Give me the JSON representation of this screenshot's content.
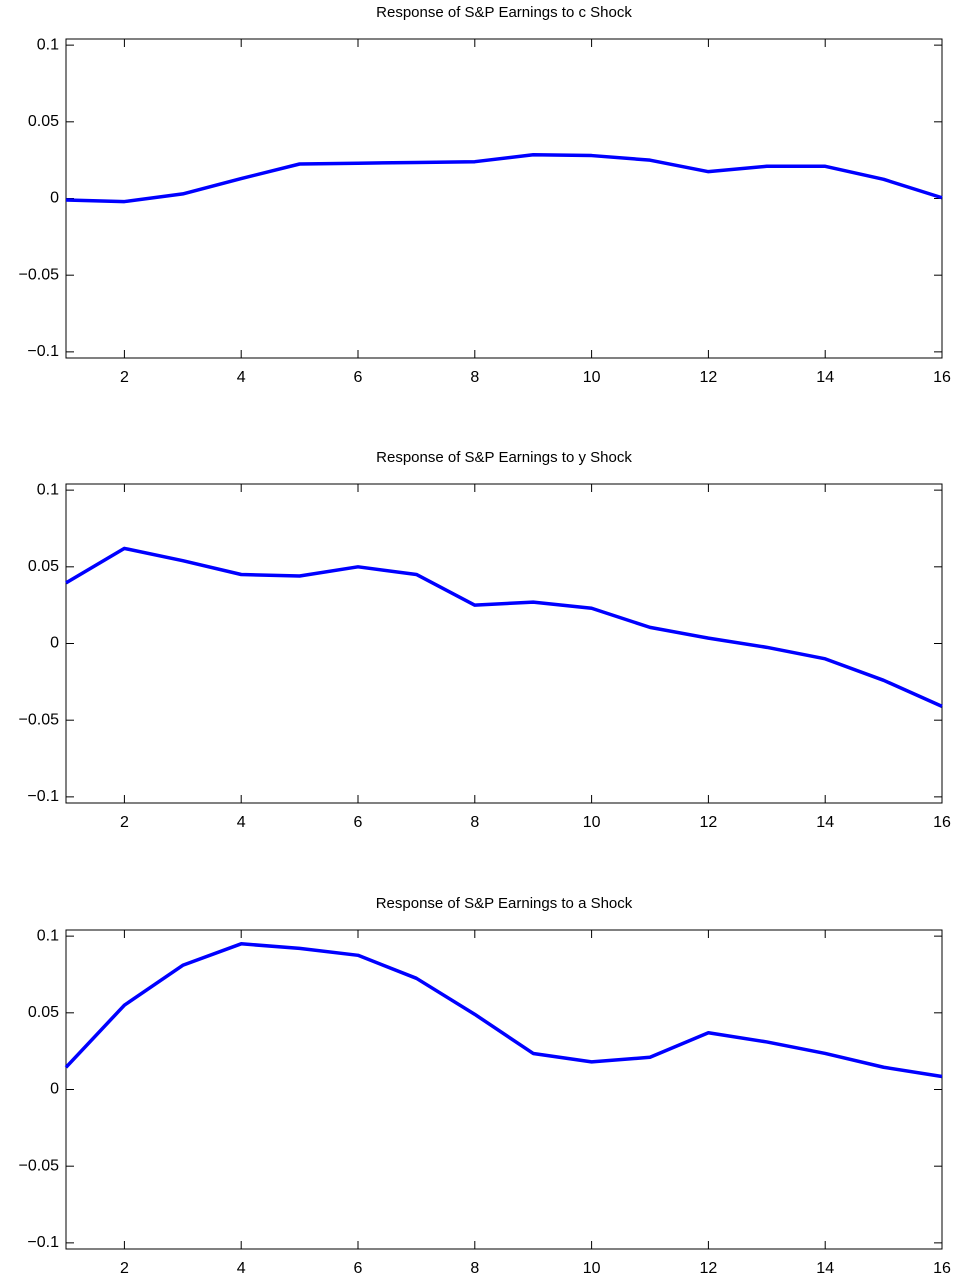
{
  "chart_data": [
    {
      "type": "line",
      "title": "Response of S&P Earnings to c Shock",
      "x": [
        1,
        2,
        3,
        4,
        5,
        6,
        7,
        8,
        9,
        10,
        11,
        12,
        13,
        14,
        15,
        16
      ],
      "series": [
        {
          "color": "#0000ff",
          "values": [
            -0.001,
            -0.002,
            0.003,
            0.013,
            0.0225,
            0.023,
            0.0235,
            0.024,
            0.0285,
            0.028,
            0.025,
            0.0175,
            0.021,
            0.021,
            0.0125,
            0.0005
          ]
        }
      ],
      "xlim": [
        1,
        16
      ],
      "xticks": [
        2,
        4,
        6,
        8,
        10,
        12,
        14,
        16
      ],
      "ylim": [
        -0.104,
        0.104
      ],
      "yticks": [
        {
          "value": -0.1,
          "label": "−0.1"
        },
        {
          "value": -0.05,
          "label": "−0.05"
        },
        0,
        0.05,
        0.1
      ]
    },
    {
      "type": "line",
      "title": "Response of S&P Earnings to y Shock",
      "x": [
        1,
        2,
        3,
        4,
        5,
        6,
        7,
        8,
        9,
        10,
        11,
        12,
        13,
        14,
        15,
        16
      ],
      "series": [
        {
          "color": "#0000ff",
          "values": [
            0.0395,
            0.062,
            0.054,
            0.045,
            0.044,
            0.05,
            0.045,
            0.025,
            0.027,
            0.023,
            0.0105,
            0.0035,
            -0.0025,
            -0.01,
            -0.024,
            -0.041
          ]
        }
      ],
      "xlim": [
        1,
        16
      ],
      "xticks": [
        2,
        4,
        6,
        8,
        10,
        12,
        14,
        16
      ],
      "ylim": [
        -0.104,
        0.104
      ],
      "yticks": [
        {
          "value": -0.1,
          "label": "−0.1"
        },
        {
          "value": -0.05,
          "label": "−0.05"
        },
        0,
        0.05,
        0.1
      ]
    },
    {
      "type": "line",
      "title": "Response of S&P Earnings to a Shock",
      "x": [
        1,
        2,
        3,
        4,
        5,
        6,
        7,
        8,
        9,
        10,
        11,
        12,
        13,
        14,
        15,
        16
      ],
      "series": [
        {
          "color": "#0000ff",
          "values": [
            0.0145,
            0.055,
            0.081,
            0.095,
            0.092,
            0.0875,
            0.0725,
            0.049,
            0.0235,
            0.018,
            0.021,
            0.037,
            0.031,
            0.0235,
            0.0145,
            0.0085
          ]
        }
      ],
      "xlim": [
        1,
        16
      ],
      "xticks": [
        2,
        4,
        6,
        8,
        10,
        12,
        14,
        16
      ],
      "ylim": [
        -0.104,
        0.104
      ],
      "yticks": [
        {
          "value": -0.1,
          "label": "−0.1"
        },
        {
          "value": -0.05,
          "label": "−0.05"
        },
        0,
        0.05,
        0.1
      ]
    }
  ]
}
